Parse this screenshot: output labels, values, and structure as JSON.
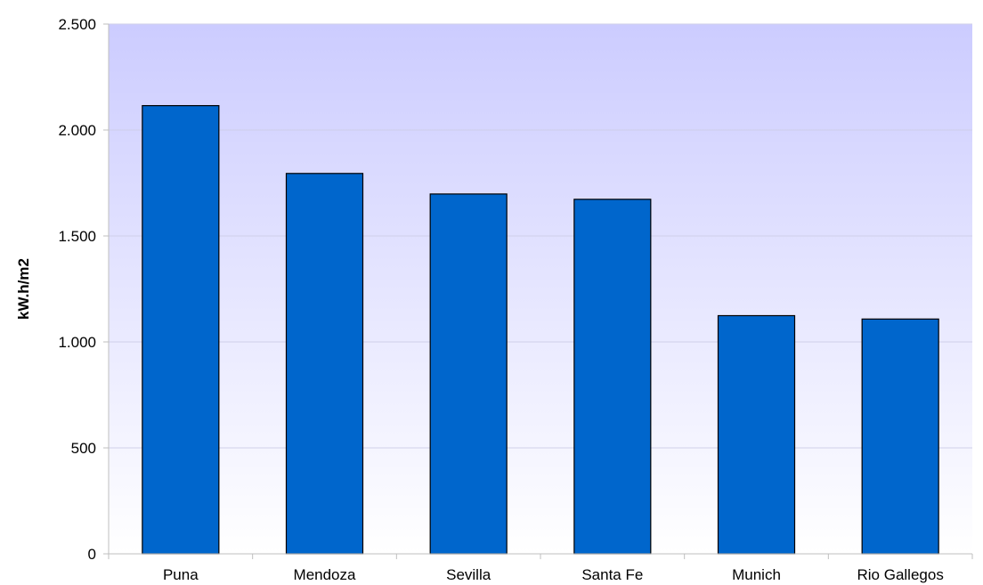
{
  "chart_data": {
    "type": "bar",
    "title": "",
    "xlabel": "",
    "ylabel": "kW.h/m2",
    "categories": [
      "Puna",
      "Mendoza",
      "Sevilla",
      "Santa Fe",
      "Munich",
      "Rio Gallegos"
    ],
    "values": [
      2115,
      1795,
      1698,
      1673,
      1124,
      1108
    ],
    "ylim": [
      0,
      2500
    ],
    "yticks": [
      0,
      500,
      1000,
      1500,
      2000,
      2500
    ],
    "ytick_labels": [
      "0",
      "500",
      "1.000",
      "1.500",
      "2.000",
      "2.500"
    ],
    "grid": true,
    "legend": "none",
    "colors": {
      "bar_fill": "#0066CC",
      "bar_stroke": "#000000",
      "plot_bg_top": "#CCCCFF",
      "plot_bg_bottom": "#FFFFFF",
      "gridline": "#CFCFE8",
      "axis": "#BFBFBF"
    }
  }
}
